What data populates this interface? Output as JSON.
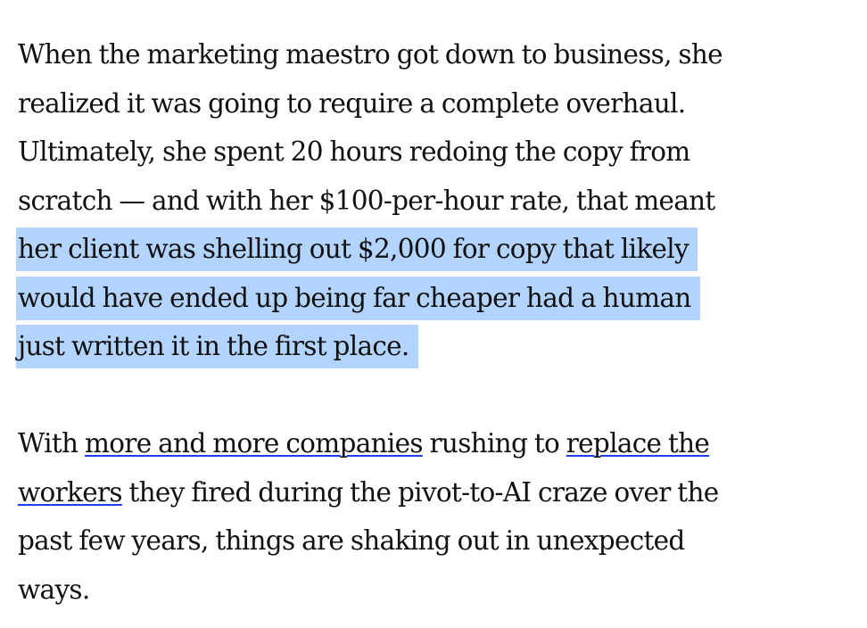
{
  "article": {
    "paragraph1": {
      "lines": [
        "When the marketing maestro got down to business, she",
        "realized it was going to require a complete overhaul.",
        "Ultimately, she spent 20 hours redoing the copy from",
        "scratch — and with her $100-per-hour rate, that meant"
      ],
      "highlighted_lines": [
        "her client was shelling out $2,000 for copy that likely",
        "would have ended up being far cheaper had a human",
        "just written it in the first place."
      ]
    },
    "paragraph2": {
      "line1_prefix": "With ",
      "link1": "more and more companies",
      "line1_mid": " rushing to ",
      "link2_part1": "replace the",
      "link2_part2": "workers",
      "line2_suffix": " they fired during the pivot-to-AI craze over the",
      "line3": "past few years, things are shaking out in unexpected",
      "line4": "ways."
    },
    "colors": {
      "highlight": "#b3d4fe",
      "link_underline": "#1f3ef0",
      "text": "#111111"
    }
  }
}
